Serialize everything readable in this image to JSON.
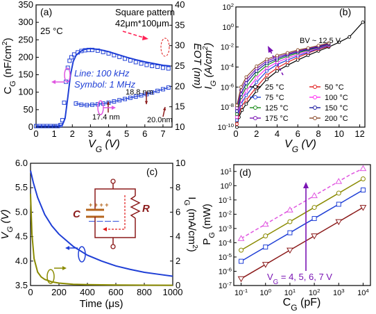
{
  "chart_data": [
    {
      "panel": "(a)",
      "type": "line",
      "xlabel": "V_G (V)",
      "ylabel_left": "C_G (nF/cm^2)",
      "ylabel_right": "EOT (nm)",
      "xlim": [
        0,
        7.5
      ],
      "ylim_left": [
        0,
        350
      ],
      "ylim_right": [
        10,
        40
      ],
      "xticks": [
        "0",
        "1",
        "2",
        "3",
        "4",
        "5",
        "6",
        "7"
      ],
      "yticks_left": [
        "0",
        "50",
        "100",
        "150",
        "200",
        "250",
        "300",
        "350"
      ],
      "yticks_right": [
        "10",
        "15",
        "20",
        "25",
        "30",
        "35",
        "40"
      ],
      "annotations": [
        "25 °C",
        "Square pattern",
        "42μm*100μm",
        "Line: 100 kHz",
        "Symbol: 1 MHz",
        "18.8 nm",
        "17.4 nm",
        "20.0nm"
      ],
      "series": [
        {
          "name": "Line: 100 kHz",
          "axis": "left",
          "color": "#1f3fd6",
          "x": [
            0,
            1.2,
            1.45,
            1.6,
            1.75,
            1.9,
            2.05,
            2.2,
            2.4,
            2.6,
            2.8,
            3.0,
            3.5,
            4.0,
            4.5,
            5.0,
            5.5,
            6.0,
            6.5,
            7.0,
            7.4
          ],
          "y": [
            3,
            3,
            6,
            25,
            85,
            150,
            188,
            205,
            215,
            221,
            224,
            225,
            222,
            216,
            208,
            200,
            193,
            187,
            182,
            177,
            175
          ]
        },
        {
          "name": "Symbol: 1 MHz",
          "axis": "left",
          "color": "#1f3fd6",
          "x": [
            0,
            0.2,
            0.4,
            0.6,
            0.8,
            1.0,
            1.2,
            1.35,
            1.45,
            1.55,
            1.65,
            1.75,
            1.85,
            1.95,
            2.1,
            2.3,
            2.5,
            2.7,
            2.9,
            3.1,
            3.4,
            3.7,
            4.0,
            4.3,
            4.6,
            4.9,
            5.2,
            5.5,
            5.8,
            6.1,
            6.4,
            6.7,
            7.0,
            7.3
          ],
          "y": [
            3,
            3,
            3,
            3,
            3,
            3,
            3,
            6,
            20,
            70,
            130,
            170,
            190,
            200,
            208,
            214,
            218,
            220,
            221,
            221,
            219,
            215,
            211,
            206,
            201,
            196,
            191,
            186,
            182,
            178,
            175,
            173,
            170,
            168
          ]
        },
        {
          "name": "EOT",
          "axis": "right",
          "color": "#1f3fd6",
          "x": [
            2.2,
            2.5,
            2.8,
            3.1,
            3.4,
            3.7,
            4.0,
            4.3,
            4.6,
            4.9,
            5.2,
            5.5,
            5.8,
            6.1,
            6.4,
            6.7,
            7.0,
            7.3
          ],
          "y": [
            15.8,
            15.5,
            15.4,
            15.5,
            15.6,
            15.8,
            16.0,
            16.3,
            16.6,
            16.9,
            17.2,
            17.5,
            17.8,
            18.1,
            18.5,
            18.9,
            19.3,
            19.7
          ]
        }
      ]
    },
    {
      "panel": "(b)",
      "type": "line",
      "xlabel": "V_G (V)",
      "ylabel": "I_G (A/cm^2)",
      "yscale": "log",
      "xlim": [
        0,
        12.5
      ],
      "ylim": [
        1e-10,
        100
      ],
      "xticks": [
        "0",
        "2",
        "4",
        "6",
        "8",
        "10",
        "12"
      ],
      "yticks": [
        "10^-10",
        "10^-8",
        "10^-6",
        "10^-4",
        "10^-2",
        "10^0",
        "10^2"
      ],
      "annotations": [
        "BV ~ 12.5 V"
      ],
      "series": [
        {
          "name": "25 °C",
          "color": "#000000",
          "x": [
            0.1,
            0.3,
            0.6,
            1,
            2,
            3,
            4,
            5,
            6,
            7,
            8,
            9,
            10,
            11,
            12.3
          ],
          "y": [
            1e-10,
            1e-09,
            5e-09,
            2e-08,
            4e-07,
            6e-06,
            4e-05,
            0.00015,
            0.0005,
            0.0015,
            0.004,
            0.01,
            0.03,
            0.1,
            3.0
          ]
        },
        {
          "name": "50 °C",
          "color": "#e01b1b",
          "x": [
            0.1,
            0.5,
            1,
            2,
            3,
            4,
            5,
            6,
            7,
            8,
            9
          ],
          "y": [
            2e-10,
            1e-08,
            5e-08,
            1e-06,
            1.5e-05,
            8e-05,
            0.0003,
            0.0009,
            0.0025,
            0.006,
            0.012
          ]
        },
        {
          "name": "75 °C",
          "color": "#1f3fd6",
          "x": [
            0.1,
            0.5,
            1,
            2,
            3,
            4,
            5,
            6,
            7,
            8,
            9
          ],
          "y": [
            5e-10,
            2e-08,
            1.5e-07,
            3e-06,
            4e-05,
            0.00018,
            0.0005,
            0.0013,
            0.003,
            0.007,
            0.014
          ]
        },
        {
          "name": "100 °C",
          "color": "#ff2ff2",
          "x": [
            0.1,
            0.5,
            1,
            2,
            3,
            4,
            5,
            6,
            7,
            8,
            9
          ],
          "y": [
            1e-09,
            5e-08,
            4e-07,
            8e-06,
            8e-05,
            0.0003,
            0.0008,
            0.0018,
            0.004,
            0.008,
            0.016
          ]
        },
        {
          "name": "125 °C",
          "color": "#178a17",
          "x": [
            0.1,
            0.5,
            1,
            2,
            3,
            4,
            5,
            6,
            7,
            8,
            9
          ],
          "y": [
            2e-09,
            1e-07,
            1e-06,
            2e-05,
            0.00015,
            0.0005,
            0.0012,
            0.0025,
            0.005,
            0.009,
            0.018
          ]
        },
        {
          "name": "150 °C",
          "color": "#1a1aa0",
          "x": [
            0.1,
            0.5,
            1,
            2,
            3,
            4,
            5,
            6,
            7,
            8,
            9
          ],
          "y": [
            4e-09,
            2e-07,
            2.5e-06,
            4e-05,
            0.00025,
            0.0007,
            0.0016,
            0.0032,
            0.006,
            0.01,
            0.02
          ]
        },
        {
          "name": "175 °C",
          "color": "#7a14b4",
          "x": [
            0.1,
            0.5,
            1,
            2,
            3,
            4,
            5,
            6,
            7,
            8,
            9
          ],
          "y": [
            8e-09,
            5e-07,
            5e-06,
            7e-05,
            0.0004,
            0.001,
            0.002,
            0.004,
            0.007,
            0.012,
            0.022
          ]
        },
        {
          "name": "200 °C",
          "color": "#8a4a2a",
          "x": [
            0.1,
            0.5,
            1,
            2,
            3,
            4,
            5,
            6,
            7,
            8,
            9
          ],
          "y": [
            1.5e-08,
            1e-06,
            1e-05,
            0.00012,
            0.0006,
            0.0014,
            0.0026,
            0.005,
            0.008,
            0.014,
            0.025
          ]
        }
      ]
    },
    {
      "panel": "(c)",
      "type": "line",
      "xlabel": "Time (μs)",
      "ylabel_left": "V_G (V)",
      "ylabel_right": "I_G (mA/cm^2)",
      "xlim": [
        0,
        1000
      ],
      "ylim_left": [
        3.5,
        6.0
      ],
      "ylim_right": [
        0,
        10
      ],
      "xticks": [
        "0",
        "200",
        "400",
        "600",
        "800",
        "1000"
      ],
      "yticks_left": [
        "3.5",
        "4.0",
        "4.5",
        "5.0",
        "5.5",
        "6.0"
      ],
      "yticks_right": [
        "0",
        "2",
        "4",
        "6",
        "8",
        "10"
      ],
      "circuit_labels": [
        "C",
        "R"
      ],
      "series": [
        {
          "name": "V_G",
          "axis": "left",
          "color": "#1f3fd6",
          "x": [
            0,
            20,
            50,
            100,
            150,
            200,
            300,
            400,
            500,
            600,
            700,
            800,
            900,
            1000
          ],
          "y": [
            5.85,
            5.6,
            5.3,
            4.95,
            4.72,
            4.55,
            4.3,
            4.12,
            4.0,
            3.9,
            3.83,
            3.77,
            3.73,
            3.69
          ]
        },
        {
          "name": "I_G",
          "axis": "right",
          "color": "#8a8a00",
          "x": [
            0,
            10,
            25,
            50,
            75,
            100,
            150,
            200,
            300,
            400,
            600,
            800,
            1000
          ],
          "y": [
            7.5,
            4.2,
            2.2,
            1.1,
            0.7,
            0.5,
            0.3,
            0.2,
            0.1,
            0.07,
            0.04,
            0.03,
            0.02
          ]
        }
      ]
    },
    {
      "panel": "(d)",
      "type": "line",
      "xlabel": "C_G (pF)",
      "ylabel": "P_G (mW)",
      "xscale": "log",
      "yscale": "log",
      "xlim": [
        0.05,
        20000
      ],
      "ylim": [
        1e-07,
        30
      ],
      "xticks": [
        "10^-1",
        "10^0",
        "10^1",
        "10^2",
        "10^3",
        "10^4"
      ],
      "yticks": [
        "10^-7",
        "10^-6",
        "10^-5",
        "10^-4",
        "10^-3",
        "10^-2",
        "10^-1",
        "10^0",
        "10^1"
      ],
      "annotations": [
        "V_G = 4, 5, 6, 7 V"
      ],
      "series": [
        {
          "name": "4 V",
          "color": "#8b1a1a",
          "marker": "triangle-down",
          "x": [
            0.1,
            0.316,
            1,
            3.16,
            10,
            31.6,
            100,
            316,
            1000,
            3162,
            10000
          ],
          "y": [
            3e-07,
            9.5e-07,
            3e-06,
            9.5e-06,
            3e-05,
            9.5e-05,
            0.0003,
            0.00095,
            0.003,
            0.0095,
            0.03
          ]
        },
        {
          "name": "5 V",
          "color": "#1f3fd6",
          "marker": "square",
          "x": [
            0.1,
            0.316,
            1,
            3.16,
            10,
            31.6,
            100,
            316,
            1000,
            3162,
            10000
          ],
          "y": [
            5e-06,
            1.6e-05,
            5e-05,
            0.00016,
            0.0005,
            0.0016,
            0.005,
            0.016,
            0.05,
            0.16,
            0.5
          ]
        },
        {
          "name": "6 V",
          "color": "#8a8a00",
          "marker": "circle",
          "x": [
            0.1,
            0.316,
            1,
            3.16,
            10,
            31.6,
            100,
            316,
            1000,
            3162,
            10000
          ],
          "y": [
            3e-05,
            9.5e-05,
            0.0003,
            0.00095,
            0.003,
            0.0095,
            0.03,
            0.095,
            0.3,
            0.95,
            3
          ]
        },
        {
          "name": "7 V",
          "color": "#e055e0",
          "marker": "triangle-up",
          "dashed": true,
          "x": [
            0.1,
            0.316,
            1,
            3.16,
            10,
            31.6,
            100,
            316,
            1000,
            3162,
            10000
          ],
          "y": [
            0.0002,
            0.00063,
            0.002,
            0.0063,
            0.02,
            0.063,
            0.2,
            0.63,
            2,
            6.3,
            16
          ]
        }
      ]
    }
  ]
}
